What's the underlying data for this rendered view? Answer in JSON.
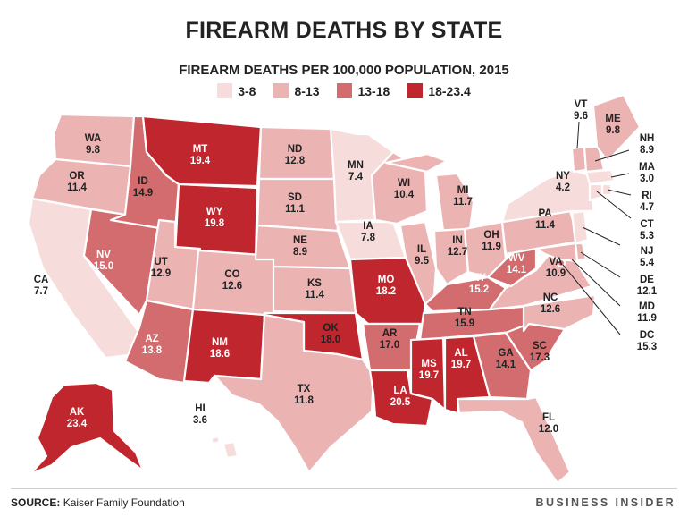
{
  "title": "FIREARM DEATHS BY STATE",
  "subtitle": "FIREARM DEATHS PER 100,000 POPULATION, 2015",
  "legend": [
    {
      "label": "3-8",
      "color": "#f7dcdc"
    },
    {
      "label": "8-13",
      "color": "#ecb3b3"
    },
    {
      "label": "13-18",
      "color": "#d26c6e"
    },
    {
      "label": "18-23.4",
      "color": "#c0262d"
    }
  ],
  "source_label": "SOURCE:",
  "source_text": "Kaiser Family Foundation",
  "brand": "BUSINESS INSIDER",
  "states": [
    {
      "abbr": "WA",
      "value": "9.8"
    },
    {
      "abbr": "OR",
      "value": "11.4"
    },
    {
      "abbr": "CA",
      "value": "7.7"
    },
    {
      "abbr": "NV",
      "value": "15.0"
    },
    {
      "abbr": "ID",
      "value": "14.9"
    },
    {
      "abbr": "MT",
      "value": "19.4"
    },
    {
      "abbr": "WY",
      "value": "19.8"
    },
    {
      "abbr": "UT",
      "value": "12.9"
    },
    {
      "abbr": "AZ",
      "value": "13.8"
    },
    {
      "abbr": "CO",
      "value": "12.6"
    },
    {
      "abbr": "NM",
      "value": "18.6"
    },
    {
      "abbr": "ND",
      "value": "12.8"
    },
    {
      "abbr": "SD",
      "value": "11.1"
    },
    {
      "abbr": "NE",
      "value": "8.9"
    },
    {
      "abbr": "KS",
      "value": "11.4"
    },
    {
      "abbr": "OK",
      "value": "18.0"
    },
    {
      "abbr": "TX",
      "value": "11.8"
    },
    {
      "abbr": "MN",
      "value": "7.4"
    },
    {
      "abbr": "IA",
      "value": "7.8"
    },
    {
      "abbr": "MO",
      "value": "18.2"
    },
    {
      "abbr": "AR",
      "value": "17.0"
    },
    {
      "abbr": "LA",
      "value": "20.5"
    },
    {
      "abbr": "WI",
      "value": "10.4"
    },
    {
      "abbr": "IL",
      "value": "9.5"
    },
    {
      "abbr": "MI",
      "value": "11.7"
    },
    {
      "abbr": "IN",
      "value": "12.7"
    },
    {
      "abbr": "OH",
      "value": "11.9"
    },
    {
      "abbr": "KY",
      "value": "15.2"
    },
    {
      "abbr": "TN",
      "value": "15.9"
    },
    {
      "abbr": "MS",
      "value": "19.7"
    },
    {
      "abbr": "AL",
      "value": "19.7"
    },
    {
      "abbr": "GA",
      "value": "14.1"
    },
    {
      "abbr": "FL",
      "value": "12.0"
    },
    {
      "abbr": "SC",
      "value": "17.3"
    },
    {
      "abbr": "NC",
      "value": "12.6"
    },
    {
      "abbr": "VA",
      "value": "10.9"
    },
    {
      "abbr": "WV",
      "value": "14.1"
    },
    {
      "abbr": "PA",
      "value": "11.4"
    },
    {
      "abbr": "NY",
      "value": "4.2"
    },
    {
      "abbr": "VT",
      "value": "9.6"
    },
    {
      "abbr": "ME",
      "value": "9.8"
    },
    {
      "abbr": "NH",
      "value": "8.9"
    },
    {
      "abbr": "MA",
      "value": "3.0"
    },
    {
      "abbr": "RI",
      "value": "4.7"
    },
    {
      "abbr": "CT",
      "value": "5.3"
    },
    {
      "abbr": "NJ",
      "value": "5.4"
    },
    {
      "abbr": "DE",
      "value": "12.1"
    },
    {
      "abbr": "MD",
      "value": "11.9"
    },
    {
      "abbr": "DC",
      "value": "15.3"
    },
    {
      "abbr": "AK",
      "value": "23.4"
    },
    {
      "abbr": "HI",
      "value": "3.6"
    }
  ]
}
